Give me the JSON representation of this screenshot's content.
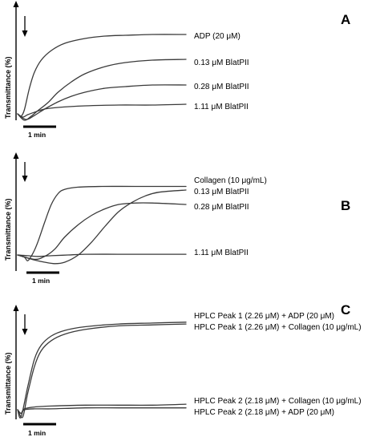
{
  "chart_data": [
    {
      "type": "line",
      "panel": "A",
      "ylabel": "Transmittance (%)",
      "scale_bar": "1 min",
      "series": [
        {
          "name": "ADP (20 μM)",
          "x": [
            0,
            0.1,
            0.2,
            0.35,
            0.5,
            0.7,
            1.0,
            1.4,
            2.0,
            2.6,
            3.2,
            4.0,
            5.0
          ],
          "values": [
            0,
            -3,
            5,
            32,
            52,
            67,
            79,
            88,
            94,
            97,
            98,
            99,
            99
          ]
        },
        {
          "name": "0.13 μM BlatPII",
          "x": [
            0,
            0.2,
            0.4,
            0.6,
            0.9,
            1.2,
            1.6,
            2.0,
            2.6,
            3.2,
            4.0,
            5.0
          ],
          "values": [
            0,
            -8,
            -3,
            4,
            14,
            27,
            40,
            50,
            59,
            64,
            67,
            68
          ]
        },
        {
          "name": "0.28 μM BlatPII",
          "x": [
            0,
            0.25,
            0.5,
            0.8,
            1.2,
            1.6,
            2.0,
            2.6,
            3.2,
            4.0,
            5.0
          ],
          "values": [
            0,
            -7,
            -2,
            6,
            15,
            22,
            27,
            32,
            34,
            36,
            36
          ]
        },
        {
          "name": "1.11 μM BlatPII",
          "x": [
            0,
            0.15,
            0.3,
            0.5,
            0.8,
            1.2,
            2.0,
            3.0,
            4.0,
            5.0
          ],
          "values": [
            0,
            -4,
            -1,
            2,
            6,
            8,
            10,
            11,
            11,
            12
          ]
        }
      ]
    },
    {
      "type": "line",
      "panel": "B",
      "ylabel": "Transmittance (%)",
      "scale_bar": "1 min",
      "series": [
        {
          "name": "Collagen (10 μg/mL)",
          "x": [
            0,
            0.2,
            0.3,
            0.45,
            0.6,
            0.8,
            1.0,
            1.2,
            1.4,
            1.8,
            2.5,
            3.5,
            5.0
          ],
          "values": [
            0,
            -3,
            -8,
            2,
            18,
            45,
            70,
            85,
            91,
            94,
            95,
            95,
            95
          ]
        },
        {
          "name": "0.13 μM BlatPII",
          "x": [
            0,
            0.5,
            0.8,
            1.1,
            1.4,
            1.8,
            2.2,
            2.6,
            3.0,
            3.4,
            3.8,
            4.2,
            5.0
          ],
          "values": [
            0,
            -7,
            -10,
            -12,
            -10,
            0,
            18,
            40,
            60,
            73,
            82,
            87,
            90
          ]
        },
        {
          "name": "0.28 μM BlatPII",
          "x": [
            0,
            0.5,
            0.8,
            1.1,
            1.4,
            1.8,
            2.2,
            2.6,
            3.0,
            3.5,
            4.0,
            5.0
          ],
          "values": [
            0,
            -6,
            -2,
            8,
            25,
            42,
            55,
            64,
            70,
            72,
            72,
            70
          ]
        },
        {
          "name": "1.11 μM BlatPII",
          "x": [
            0,
            0.3,
            0.6,
            1.0,
            1.5,
            2.0,
            3.0,
            4.0,
            5.0
          ],
          "values": [
            0,
            -1,
            -2,
            -1,
            0,
            1,
            1,
            1,
            1
          ]
        }
      ]
    },
    {
      "type": "line",
      "panel": "C",
      "ylabel": "Transmittance (%)",
      "scale_bar": "1 min",
      "series": [
        {
          "name": "HPLC Peak 1 (2.26 μM) + ADP (20 μM)",
          "x": [
            0,
            0.1,
            0.3,
            0.5,
            0.7,
            1.0,
            1.4,
            2.0,
            3.0,
            4.0,
            5.0
          ],
          "values": [
            0,
            -8,
            25,
            55,
            70,
            80,
            86,
            90,
            93,
            94,
            95
          ]
        },
        {
          "name": "HPLC Peak 1 (2.26 μM) + Collagen (10 μg/mL)",
          "x": [
            0,
            0.15,
            0.3,
            0.5,
            0.7,
            1.0,
            1.4,
            2.0,
            3.0,
            4.0,
            5.0
          ],
          "values": [
            0,
            -8,
            18,
            47,
            64,
            75,
            82,
            87,
            91,
            92,
            93
          ]
        },
        {
          "name": "HPLC Peak 2 (2.18 μM) + Collagen (10 μg/mL)",
          "x": [
            0,
            0.1,
            0.2,
            0.5,
            1.0,
            2.0,
            3.0,
            4.0,
            5.0
          ],
          "values": [
            0,
            -4,
            1,
            3,
            4,
            5,
            5,
            5,
            6
          ]
        },
        {
          "name": "HPLC Peak 2 (2.18 μM) + ADP (20 μM)",
          "x": [
            0,
            0.1,
            0.2,
            0.5,
            1.0,
            2.0,
            3.0,
            4.0,
            5.0
          ],
          "values": [
            0,
            -4,
            0,
            1,
            1,
            2,
            2,
            2,
            2
          ]
        }
      ]
    }
  ]
}
